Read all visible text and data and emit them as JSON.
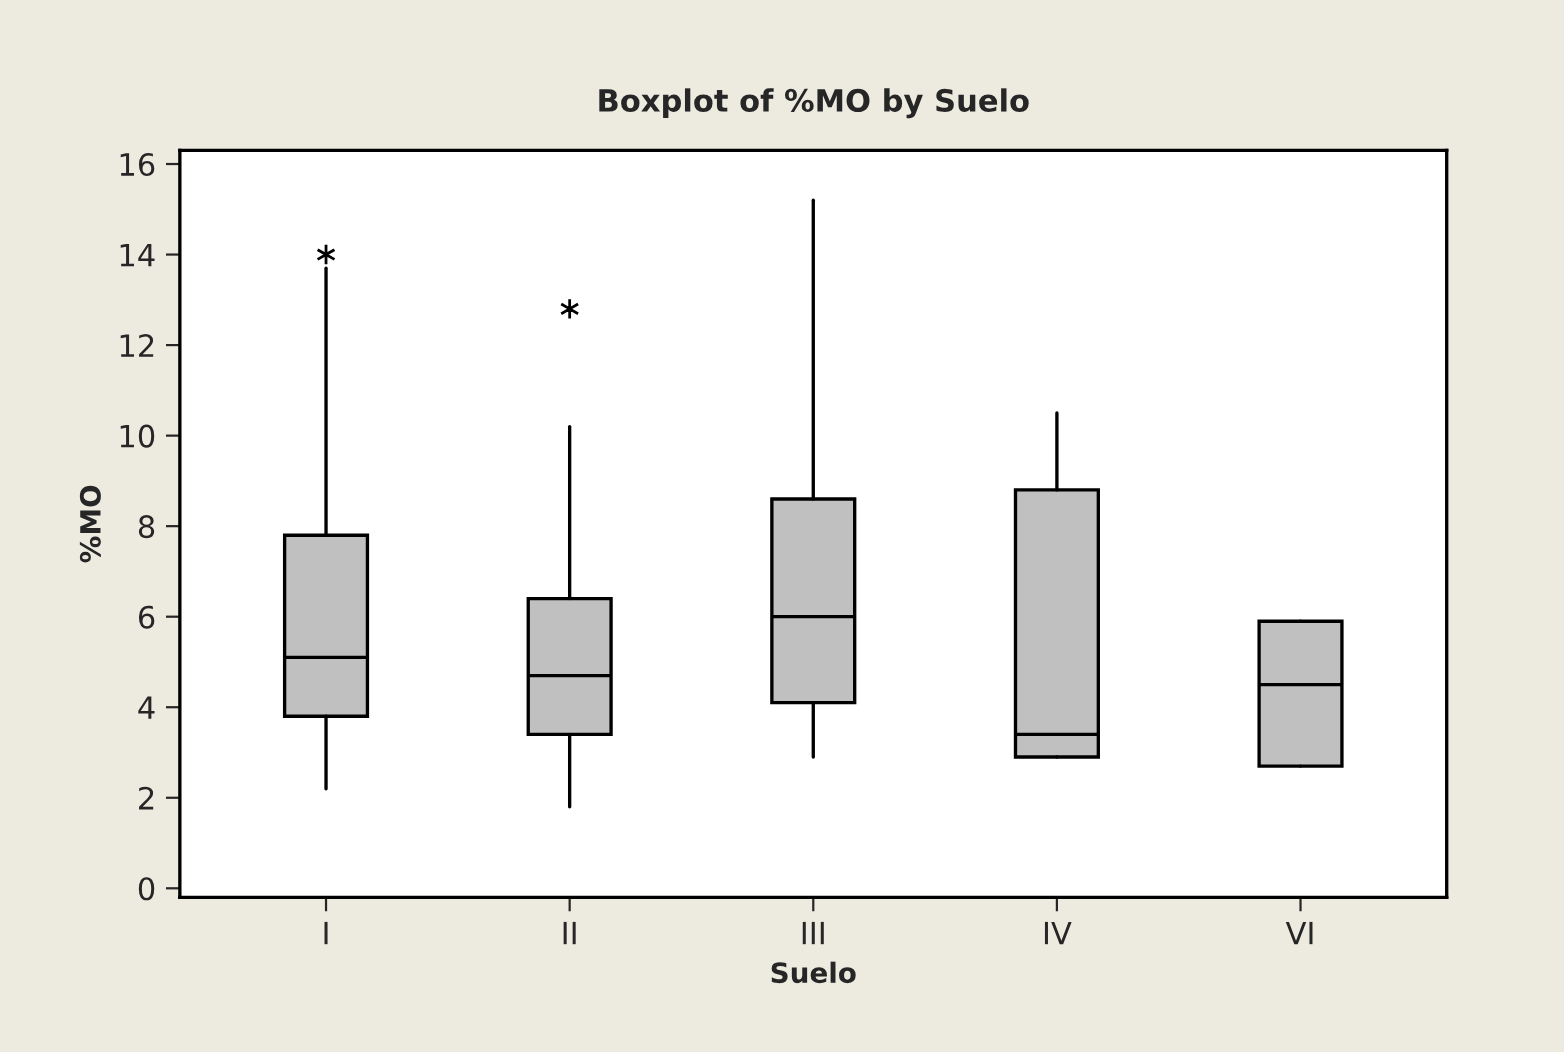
{
  "chart_data": {
    "type": "box",
    "title": "Boxplot of %MO by Suelo",
    "xlabel": "Suelo",
    "ylabel": "%MO",
    "categories": [
      "I",
      "II",
      "III",
      "IV",
      "VI"
    ],
    "boxes": [
      {
        "low": 2.2,
        "q1": 3.8,
        "median": 5.1,
        "q3": 7.8,
        "high": 13.7,
        "outliers": [
          14.0
        ]
      },
      {
        "low": 1.8,
        "q1": 3.4,
        "median": 4.7,
        "q3": 6.4,
        "high": 10.2,
        "outliers": [
          12.8
        ]
      },
      {
        "low": 2.9,
        "q1": 4.1,
        "median": 6.0,
        "q3": 8.6,
        "high": 15.2
      },
      {
        "low": 2.9,
        "q1": 2.9,
        "median": 3.4,
        "q3": 8.8,
        "high": 10.5
      },
      {
        "low": 2.7,
        "q1": 2.7,
        "median": 4.5,
        "q3": 5.9,
        "high": 5.9
      }
    ],
    "color": "#c0c0c0",
    "ylim": [
      -0.2,
      16.3
    ],
    "yticks": [
      0,
      2,
      4,
      6,
      8,
      10,
      12,
      14,
      16
    ],
    "grid": false,
    "marker": "star"
  }
}
